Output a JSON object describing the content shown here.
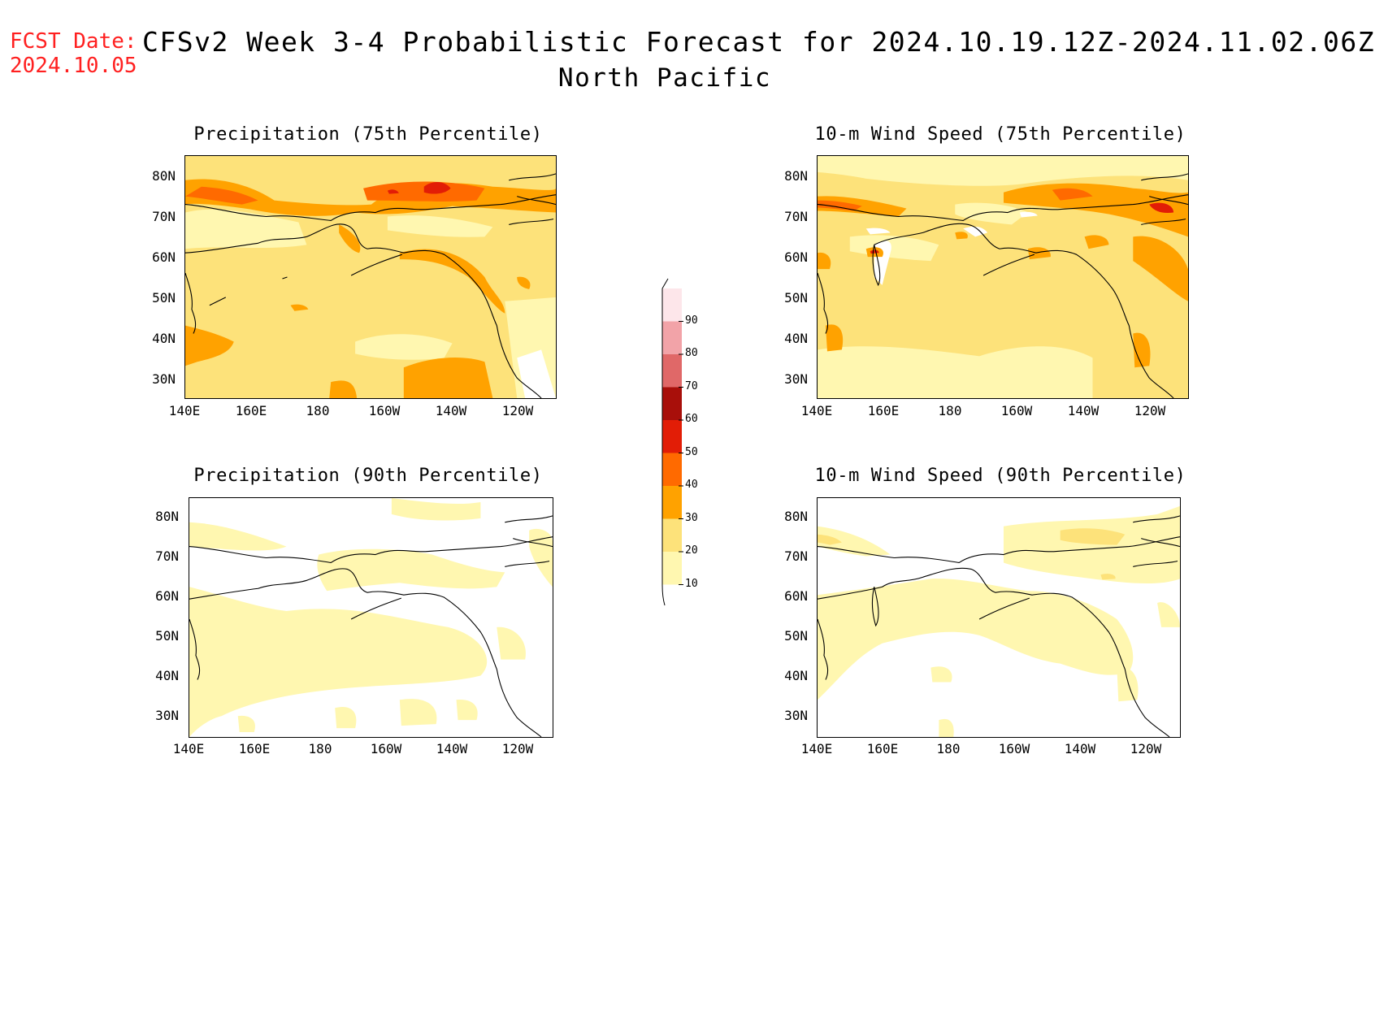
{
  "header": {
    "fcst_date_label": "FCST Date:",
    "fcst_date_value": "2024.10.05",
    "title": "CFSv2 Week 3-4 Probabilistic Forecast for 2024.10.19.12Z-2024.11.02.06Z",
    "region": "North Pacific"
  },
  "axes": {
    "lat_labels": [
      "80N",
      "70N",
      "60N",
      "50N",
      "40N",
      "30N"
    ],
    "lon_labels": [
      "140E",
      "160E",
      "180",
      "160W",
      "140W",
      "120W"
    ]
  },
  "panels": [
    {
      "id": "precip75",
      "title": "Precipitation (75th Percentile)",
      "base_category": "20-30"
    },
    {
      "id": "wind75",
      "title": "10-m Wind Speed (75th Percentile)",
      "base_category": "20-30"
    },
    {
      "id": "precip90",
      "title": "Precipitation (90th Percentile)",
      "base_category": "<10"
    },
    {
      "id": "wind90",
      "title": "10-m Wind Speed (90th Percentile)",
      "base_category": "<10"
    }
  ],
  "colorbar": {
    "labels": [
      "90",
      "80",
      "70",
      "60",
      "50",
      "40",
      "30",
      "20",
      "10"
    ],
    "colors": [
      "#fde6ea",
      "#f2a3a8",
      "#e06868",
      "#a80f0a",
      "#e21d06",
      "#ff6a00",
      "#ffa200",
      "#fde27a",
      "#fff7b0"
    ]
  }
}
